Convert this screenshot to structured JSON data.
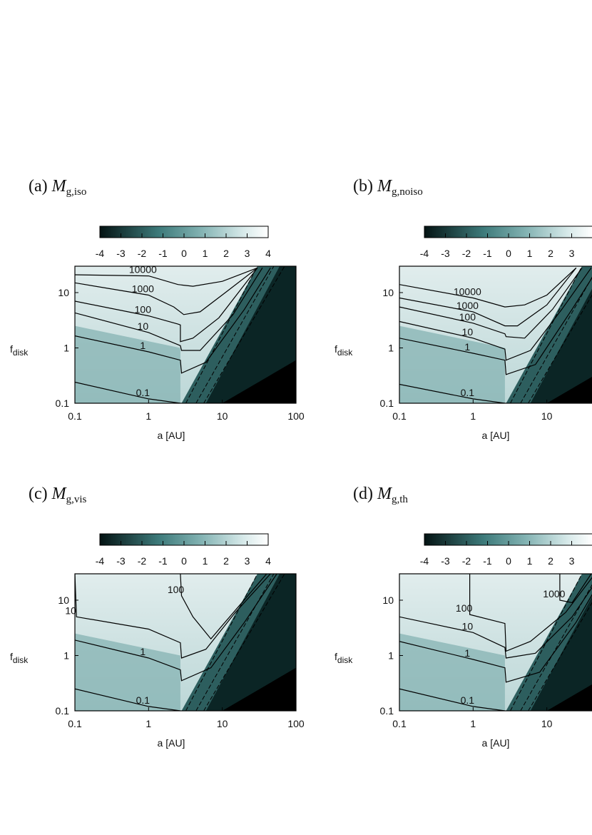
{
  "figure": {
    "panels": [
      {
        "id": "a",
        "label_prefix": "(a)",
        "symbol": "M",
        "subscript": "g,iso",
        "colorbar_ticks": [
          "-4",
          "-3",
          "-2",
          "-1",
          "0",
          "1",
          "2",
          "3",
          "4"
        ],
        "x_ticks": [
          "0.1",
          "1",
          "10",
          "100"
        ],
        "y_ticks": [
          "10",
          "1",
          "0.1"
        ],
        "xlabel": "a [AU]",
        "ylabel_main": "f",
        "ylabel_sub": "disk",
        "contour_labels": [
          "10000",
          "1000",
          "100",
          "10",
          "1",
          "0.1"
        ]
      },
      {
        "id": "b",
        "label_prefix": "(b)",
        "symbol": "M",
        "subscript": "g,noiso",
        "colorbar_ticks": [
          "-4",
          "-3",
          "-2",
          "-1",
          "0",
          "1",
          "2",
          "3"
        ],
        "x_ticks": [
          "0.1",
          "1",
          "10"
        ],
        "y_ticks": [
          "10",
          "1",
          "0.1"
        ],
        "xlabel": "a [AU]",
        "ylabel_main": "f",
        "ylabel_sub": "disk",
        "contour_labels": [
          "10000",
          "1000",
          "100",
          "10",
          "1",
          "0.1"
        ]
      },
      {
        "id": "c",
        "label_prefix": "(c)",
        "symbol": "M",
        "subscript": "g,vis",
        "colorbar_ticks": [
          "-4",
          "-3",
          "-2",
          "-1",
          "0",
          "1",
          "2",
          "3",
          "4"
        ],
        "x_ticks": [
          "0.1",
          "1",
          "10",
          "100"
        ],
        "y_ticks": [
          "10",
          "1",
          "0.1"
        ],
        "xlabel": "a [AU]",
        "ylabel_main": "f",
        "ylabel_sub": "disk",
        "contour_labels": [
          "100",
          "10",
          "1",
          "0.1"
        ]
      },
      {
        "id": "d",
        "label_prefix": "(d)",
        "symbol": "M",
        "subscript": "g,th",
        "colorbar_ticks": [
          "-4",
          "-3",
          "-2",
          "-1",
          "0",
          "1",
          "2",
          "3"
        ],
        "x_ticks": [
          "0.1",
          "1",
          "10"
        ],
        "y_ticks": [
          "10",
          "1",
          "0.1"
        ],
        "xlabel": "a [AU]",
        "ylabel_main": "f",
        "ylabel_sub": "disk",
        "contour_labels": [
          "1000",
          "100",
          "10",
          "1",
          "0.1"
        ]
      }
    ]
  },
  "chart_data": [
    {
      "type": "heatmap",
      "title": "(a) M_g,iso",
      "xlabel": "a [AU]",
      "ylabel": "f_disk",
      "x_scale": "log",
      "y_scale": "log",
      "xlim": [
        0.1,
        100
      ],
      "ylim": [
        0.1,
        30
      ],
      "colorbar": {
        "min": -4,
        "max": 4,
        "scale": "log10"
      },
      "contours": [
        {
          "level": 10000,
          "points": [
            [
              0.1,
              21
            ],
            [
              1,
              20
            ],
            [
              2.5,
              14
            ],
            [
              4,
              13
            ],
            [
              10,
              16
            ],
            [
              30,
              28
            ]
          ]
        },
        {
          "level": 1000,
          "points": [
            [
              0.1,
              15
            ],
            [
              1,
              9
            ],
            [
              2.2,
              5.5
            ],
            [
              3,
              4
            ],
            [
              5,
              4.5
            ],
            [
              11,
              10
            ],
            [
              30,
              28
            ]
          ]
        },
        {
          "level": 100,
          "points": [
            [
              0.1,
              7
            ],
            [
              1,
              3.8
            ],
            [
              2.5,
              2.7
            ],
            [
              2.7,
              2.6
            ],
            [
              2.7,
              1.3
            ],
            [
              4,
              1.5
            ],
            [
              9,
              3.5
            ],
            [
              30,
              28
            ]
          ]
        },
        {
          "level": 10,
          "points": [
            [
              0.1,
              4.3
            ],
            [
              1,
              1.9
            ],
            [
              2.7,
              1.1
            ],
            [
              2.8,
              0.9
            ],
            [
              5,
              0.9
            ],
            [
              14,
              4
            ],
            [
              35,
              28
            ]
          ]
        },
        {
          "level": 1,
          "points": [
            [
              0.1,
              1.65
            ],
            [
              1,
              0.85
            ],
            [
              2.7,
              0.6
            ],
            [
              2.8,
              0.35
            ],
            [
              6,
              0.55
            ],
            [
              20,
              5
            ],
            [
              45,
              28
            ]
          ]
        },
        {
          "level": 0.1,
          "points": [
            [
              0.1,
              0.24
            ],
            [
              1,
              0.12
            ],
            [
              2.7,
              0.1
            ]
          ]
        }
      ]
    },
    {
      "type": "heatmap",
      "title": "(b) M_g,noiso",
      "xlabel": "a [AU]",
      "ylabel": "f_disk",
      "x_scale": "log",
      "y_scale": "log",
      "xlim": [
        0.1,
        100
      ],
      "ylim": [
        0.1,
        30
      ],
      "colorbar": {
        "min": -4,
        "max": 4,
        "scale": "log10"
      },
      "contours": [
        {
          "level": 10000,
          "points": [
            [
              0.1,
              14
            ],
            [
              1,
              8
            ],
            [
              2.7,
              5.5
            ],
            [
              5,
              6
            ],
            [
              10,
              9
            ],
            [
              25,
              28
            ]
          ]
        },
        {
          "level": 1000,
          "points": [
            [
              0.1,
              8
            ],
            [
              1,
              4.5
            ],
            [
              2.7,
              2.5
            ],
            [
              4,
              2.5
            ],
            [
              10,
              6
            ],
            [
              25,
              28
            ]
          ]
        },
        {
          "level": 100,
          "points": [
            [
              0.1,
              5.5
            ],
            [
              1,
              2.8
            ],
            [
              2.7,
              1.8
            ],
            [
              2.8,
              1.6
            ],
            [
              5,
              1.5
            ],
            [
              12,
              5
            ],
            [
              30,
              28
            ]
          ]
        },
        {
          "level": 10,
          "points": [
            [
              0.1,
              3
            ],
            [
              1,
              1.5
            ],
            [
              2.7,
              0.95
            ],
            [
              2.8,
              0.6
            ],
            [
              6,
              0.9
            ],
            [
              16,
              5
            ],
            [
              40,
              28
            ]
          ]
        },
        {
          "level": 1,
          "points": [
            [
              0.1,
              1.5
            ],
            [
              1,
              0.8
            ],
            [
              2.7,
              0.6
            ],
            [
              2.8,
              0.33
            ],
            [
              7,
              0.5
            ],
            [
              22,
              5
            ],
            [
              50,
              28
            ]
          ]
        },
        {
          "level": 0.1,
          "points": [
            [
              0.1,
              0.22
            ],
            [
              1,
              0.12
            ],
            [
              2.7,
              0.1
            ]
          ]
        }
      ]
    },
    {
      "type": "heatmap",
      "title": "(c) M_g,vis",
      "xlabel": "a [AU]",
      "ylabel": "f_disk",
      "x_scale": "log",
      "y_scale": "log",
      "xlim": [
        0.1,
        100
      ],
      "ylim": [
        0.1,
        30
      ],
      "colorbar": {
        "min": -4,
        "max": 4,
        "scale": "log10"
      },
      "contours": [
        {
          "level": 100,
          "points": [
            [
              2.7,
              30
            ],
            [
              2.8,
              12
            ],
            [
              4,
              5
            ],
            [
              7,
              2
            ],
            [
              10,
              3.5
            ],
            [
              40,
              30
            ]
          ]
        },
        {
          "level": 10,
          "points": [
            [
              0.1,
              30
            ],
            [
              0.105,
              5
            ],
            [
              1,
              3
            ],
            [
              2.7,
              1.7
            ],
            [
              2.8,
              0.9
            ],
            [
              6,
              1.3
            ],
            [
              15,
              6
            ],
            [
              45,
              30
            ]
          ]
        },
        {
          "level": 1,
          "points": [
            [
              0.1,
              1.9
            ],
            [
              1,
              0.9
            ],
            [
              2.7,
              0.55
            ],
            [
              2.8,
              0.35
            ],
            [
              7,
              0.6
            ],
            [
              20,
              4
            ],
            [
              55,
              30
            ]
          ]
        },
        {
          "level": 0.1,
          "points": [
            [
              0.1,
              0.25
            ],
            [
              1,
              0.12
            ],
            [
              2.7,
              0.1
            ]
          ]
        }
      ]
    },
    {
      "type": "heatmap",
      "title": "(d) M_g,th",
      "xlabel": "a [AU]",
      "ylabel": "f_disk",
      "x_scale": "log",
      "y_scale": "log",
      "xlim": [
        0.1,
        100
      ],
      "ylim": [
        0.1,
        30
      ],
      "colorbar": {
        "min": -4,
        "max": 4,
        "scale": "log10"
      },
      "contours": [
        {
          "level": 1000,
          "points": [
            [
              15,
              30
            ],
            [
              15,
              10
            ],
            [
              22,
              9
            ],
            [
              40,
              30
            ]
          ]
        },
        {
          "level": 100,
          "points": [
            [
              0.9,
              30
            ],
            [
              0.9,
              5.5
            ],
            [
              2.7,
              3.8
            ],
            [
              2.8,
              1.2
            ],
            [
              6,
              1.8
            ],
            [
              18,
              6
            ],
            [
              45,
              30
            ]
          ]
        },
        {
          "level": 10,
          "points": [
            [
              0.1,
              5
            ],
            [
              1,
              2.6
            ],
            [
              2.7,
              1.4
            ],
            [
              2.8,
              0.9
            ],
            [
              7,
              1.1
            ],
            [
              22,
              5
            ],
            [
              55,
              30
            ]
          ]
        },
        {
          "level": 1,
          "points": [
            [
              0.1,
              1.8
            ],
            [
              1,
              0.85
            ],
            [
              2.7,
              0.6
            ],
            [
              2.8,
              0.33
            ],
            [
              8,
              0.5
            ],
            [
              25,
              4
            ],
            [
              60,
              30
            ]
          ]
        },
        {
          "level": 0.1,
          "points": [
            [
              0.1,
              0.25
            ],
            [
              1,
              0.12
            ],
            [
              2.7,
              0.1
            ]
          ]
        }
      ]
    }
  ]
}
